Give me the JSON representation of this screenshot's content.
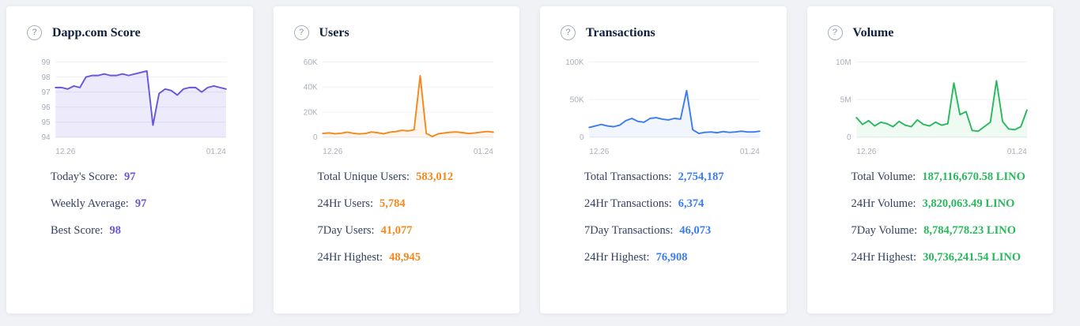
{
  "page_background": "#f0f2f5",
  "cards": [
    {
      "id": "score",
      "title": "Dapp.com Score",
      "help_glyph": "?",
      "accent": "#6656dd",
      "stats": [
        {
          "label": "Today's Score:",
          "value": "97"
        },
        {
          "label": "Weekly Average:",
          "value": "97"
        },
        {
          "label": "Best Score:",
          "value": "98"
        }
      ]
    },
    {
      "id": "users",
      "title": "Users",
      "help_glyph": "?",
      "accent": "#f5871c",
      "stats": [
        {
          "label": "Total Unique Users:",
          "value": "583,012"
        },
        {
          "label": "24Hr Users:",
          "value": "5,784"
        },
        {
          "label": "7Day Users:",
          "value": "41,077"
        },
        {
          "label": "24Hr Highest:",
          "value": "48,945"
        }
      ]
    },
    {
      "id": "transactions",
      "title": "Transactions",
      "help_glyph": "?",
      "accent": "#3b7cf0",
      "stats": [
        {
          "label": "Total Transactions:",
          "value": "2,754,187"
        },
        {
          "label": "24Hr Transactions:",
          "value": "6,374"
        },
        {
          "label": "7Day Transactions:",
          "value": "46,073"
        },
        {
          "label": "24Hr Highest:",
          "value": "76,908"
        }
      ]
    },
    {
      "id": "volume",
      "title": "Volume",
      "help_glyph": "?",
      "accent": "#28b95c",
      "stats": [
        {
          "label": "Total Volume:",
          "value": "187,116,670.58 LINO"
        },
        {
          "label": "24Hr Volume:",
          "value": "3,820,063.49 LINO"
        },
        {
          "label": "7Day Volume:",
          "value": "8,784,778.23 LINO"
        },
        {
          "label": "24Hr Highest:",
          "value": "30,736,241.54 LINO"
        }
      ]
    }
  ],
  "chart_data": [
    {
      "type": "line",
      "title": "Dapp.com Score",
      "color": "#6656dd",
      "fill_opacity": 0.12,
      "ylim": [
        94,
        99
      ],
      "y_ticks": [
        {
          "v": 99,
          "label": "99"
        },
        {
          "v": 98,
          "label": "98"
        },
        {
          "v": 97,
          "label": "97"
        },
        {
          "v": 96,
          "label": "96"
        },
        {
          "v": 95,
          "label": "95"
        },
        {
          "v": 94,
          "label": "94"
        }
      ],
      "x_labels": [
        "12.26",
        "01.24"
      ],
      "values": [
        97.3,
        97.3,
        97.2,
        97.4,
        97.3,
        98.0,
        98.1,
        98.1,
        98.2,
        98.1,
        98.1,
        98.2,
        98.1,
        98.2,
        98.3,
        98.4,
        94.8,
        96.9,
        97.2,
        97.1,
        96.8,
        97.2,
        97.3,
        97.3,
        97.0,
        97.3,
        97.4,
        97.3,
        97.2
      ]
    },
    {
      "type": "line",
      "title": "Users",
      "color": "#f5871c",
      "fill_opacity": 0.08,
      "ylim": [
        0,
        60000
      ],
      "y_ticks": [
        {
          "v": 60000,
          "label": "60K"
        },
        {
          "v": 40000,
          "label": "40K"
        },
        {
          "v": 20000,
          "label": "20K"
        },
        {
          "v": 0,
          "label": "0"
        }
      ],
      "x_labels": [
        "12.26",
        "01.24"
      ],
      "values": [
        3000,
        3500,
        2800,
        3200,
        4000,
        3200,
        2600,
        3000,
        4200,
        3600,
        2800,
        4000,
        4500,
        5500,
        5000,
        6000,
        49000,
        3000,
        600,
        2800,
        3400,
        4000,
        4200,
        3600,
        3000,
        3400,
        4000,
        4600,
        4000
      ]
    },
    {
      "type": "line",
      "title": "Transactions",
      "color": "#3b7cf0",
      "fill_opacity": 0.07,
      "ylim": [
        0,
        100000
      ],
      "y_ticks": [
        {
          "v": 100000,
          "label": "100K"
        },
        {
          "v": 50000,
          "label": "50K"
        },
        {
          "v": 0,
          "label": "0"
        }
      ],
      "x_labels": [
        "12.26",
        "01.24"
      ],
      "values": [
        13000,
        15000,
        17000,
        15000,
        14000,
        16000,
        22000,
        25000,
        21000,
        20000,
        25000,
        26000,
        24000,
        23000,
        25000,
        24000,
        62000,
        10000,
        5000,
        6500,
        7000,
        6000,
        7500,
        6500,
        7000,
        8000,
        7000,
        7000,
        8000
      ]
    },
    {
      "type": "line",
      "title": "Volume",
      "color": "#28b95c",
      "fill_opacity": 0.08,
      "ylim": [
        0,
        10000000
      ],
      "y_ticks": [
        {
          "v": 10000000,
          "label": "10M"
        },
        {
          "v": 5000000,
          "label": "5M"
        },
        {
          "v": 0,
          "label": "0"
        }
      ],
      "x_labels": [
        "12.26",
        "01.24"
      ],
      "values": [
        2600000,
        1700000,
        2200000,
        1500000,
        2000000,
        1800000,
        1400000,
        2100000,
        1600000,
        1400000,
        2300000,
        1700000,
        1500000,
        2000000,
        1600000,
        1800000,
        7200000,
        3000000,
        3400000,
        900000,
        800000,
        1400000,
        2000000,
        7500000,
        2100000,
        1100000,
        1000000,
        1400000,
        3600000
      ]
    }
  ]
}
